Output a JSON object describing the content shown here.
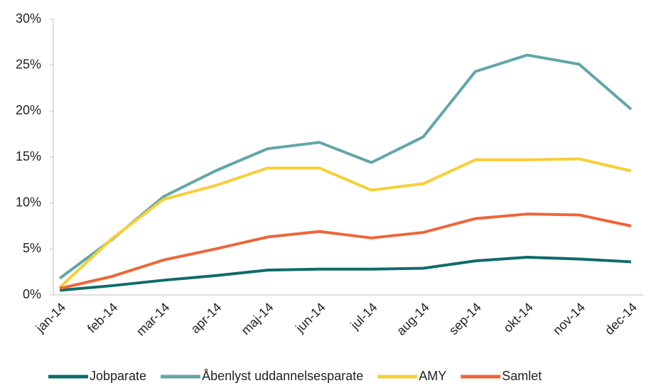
{
  "chart_data": {
    "type": "line",
    "categories": [
      "jan-14",
      "feb-14",
      "mar-14",
      "apr-14",
      "maj-14",
      "jun-14",
      "jul-14",
      "aug-14",
      "sep-14",
      "okt-14",
      "nov-14",
      "dec-14"
    ],
    "series": [
      {
        "name": "Jobparate",
        "color": "#0f6b6c",
        "values": [
          0.5,
          1.0,
          1.6,
          2.1,
          2.7,
          2.8,
          2.8,
          2.9,
          3.7,
          4.1,
          3.9,
          3.6
        ]
      },
      {
        "name": "Åbenlyst uddannelsesparate",
        "color": "#62a6a8",
        "values": [
          1.8,
          6.0,
          10.7,
          13.5,
          15.9,
          16.6,
          14.4,
          17.2,
          24.3,
          26.1,
          25.1,
          20.2
        ]
      },
      {
        "name": "AMY",
        "color": "#f8ce36",
        "values": [
          0.8,
          6.1,
          10.4,
          11.9,
          13.8,
          13.8,
          11.4,
          12.1,
          14.7,
          14.7,
          14.8,
          13.5
        ]
      },
      {
        "name": "Samlet",
        "color": "#ee6538",
        "values": [
          0.7,
          2.0,
          3.8,
          5.0,
          6.3,
          6.9,
          6.2,
          6.8,
          8.3,
          8.8,
          8.7,
          7.5
        ]
      }
    ],
    "ylim": [
      0,
      30
    ],
    "yticks": [
      {
        "value": 0,
        "label": "0%"
      },
      {
        "value": 5,
        "label": "5%"
      },
      {
        "value": 10,
        "label": "10%"
      },
      {
        "value": 15,
        "label": "15%"
      },
      {
        "value": 20,
        "label": "20%"
      },
      {
        "value": 25,
        "label": "25%"
      },
      {
        "value": 30,
        "label": "30%"
      }
    ],
    "legend": "bottom"
  }
}
